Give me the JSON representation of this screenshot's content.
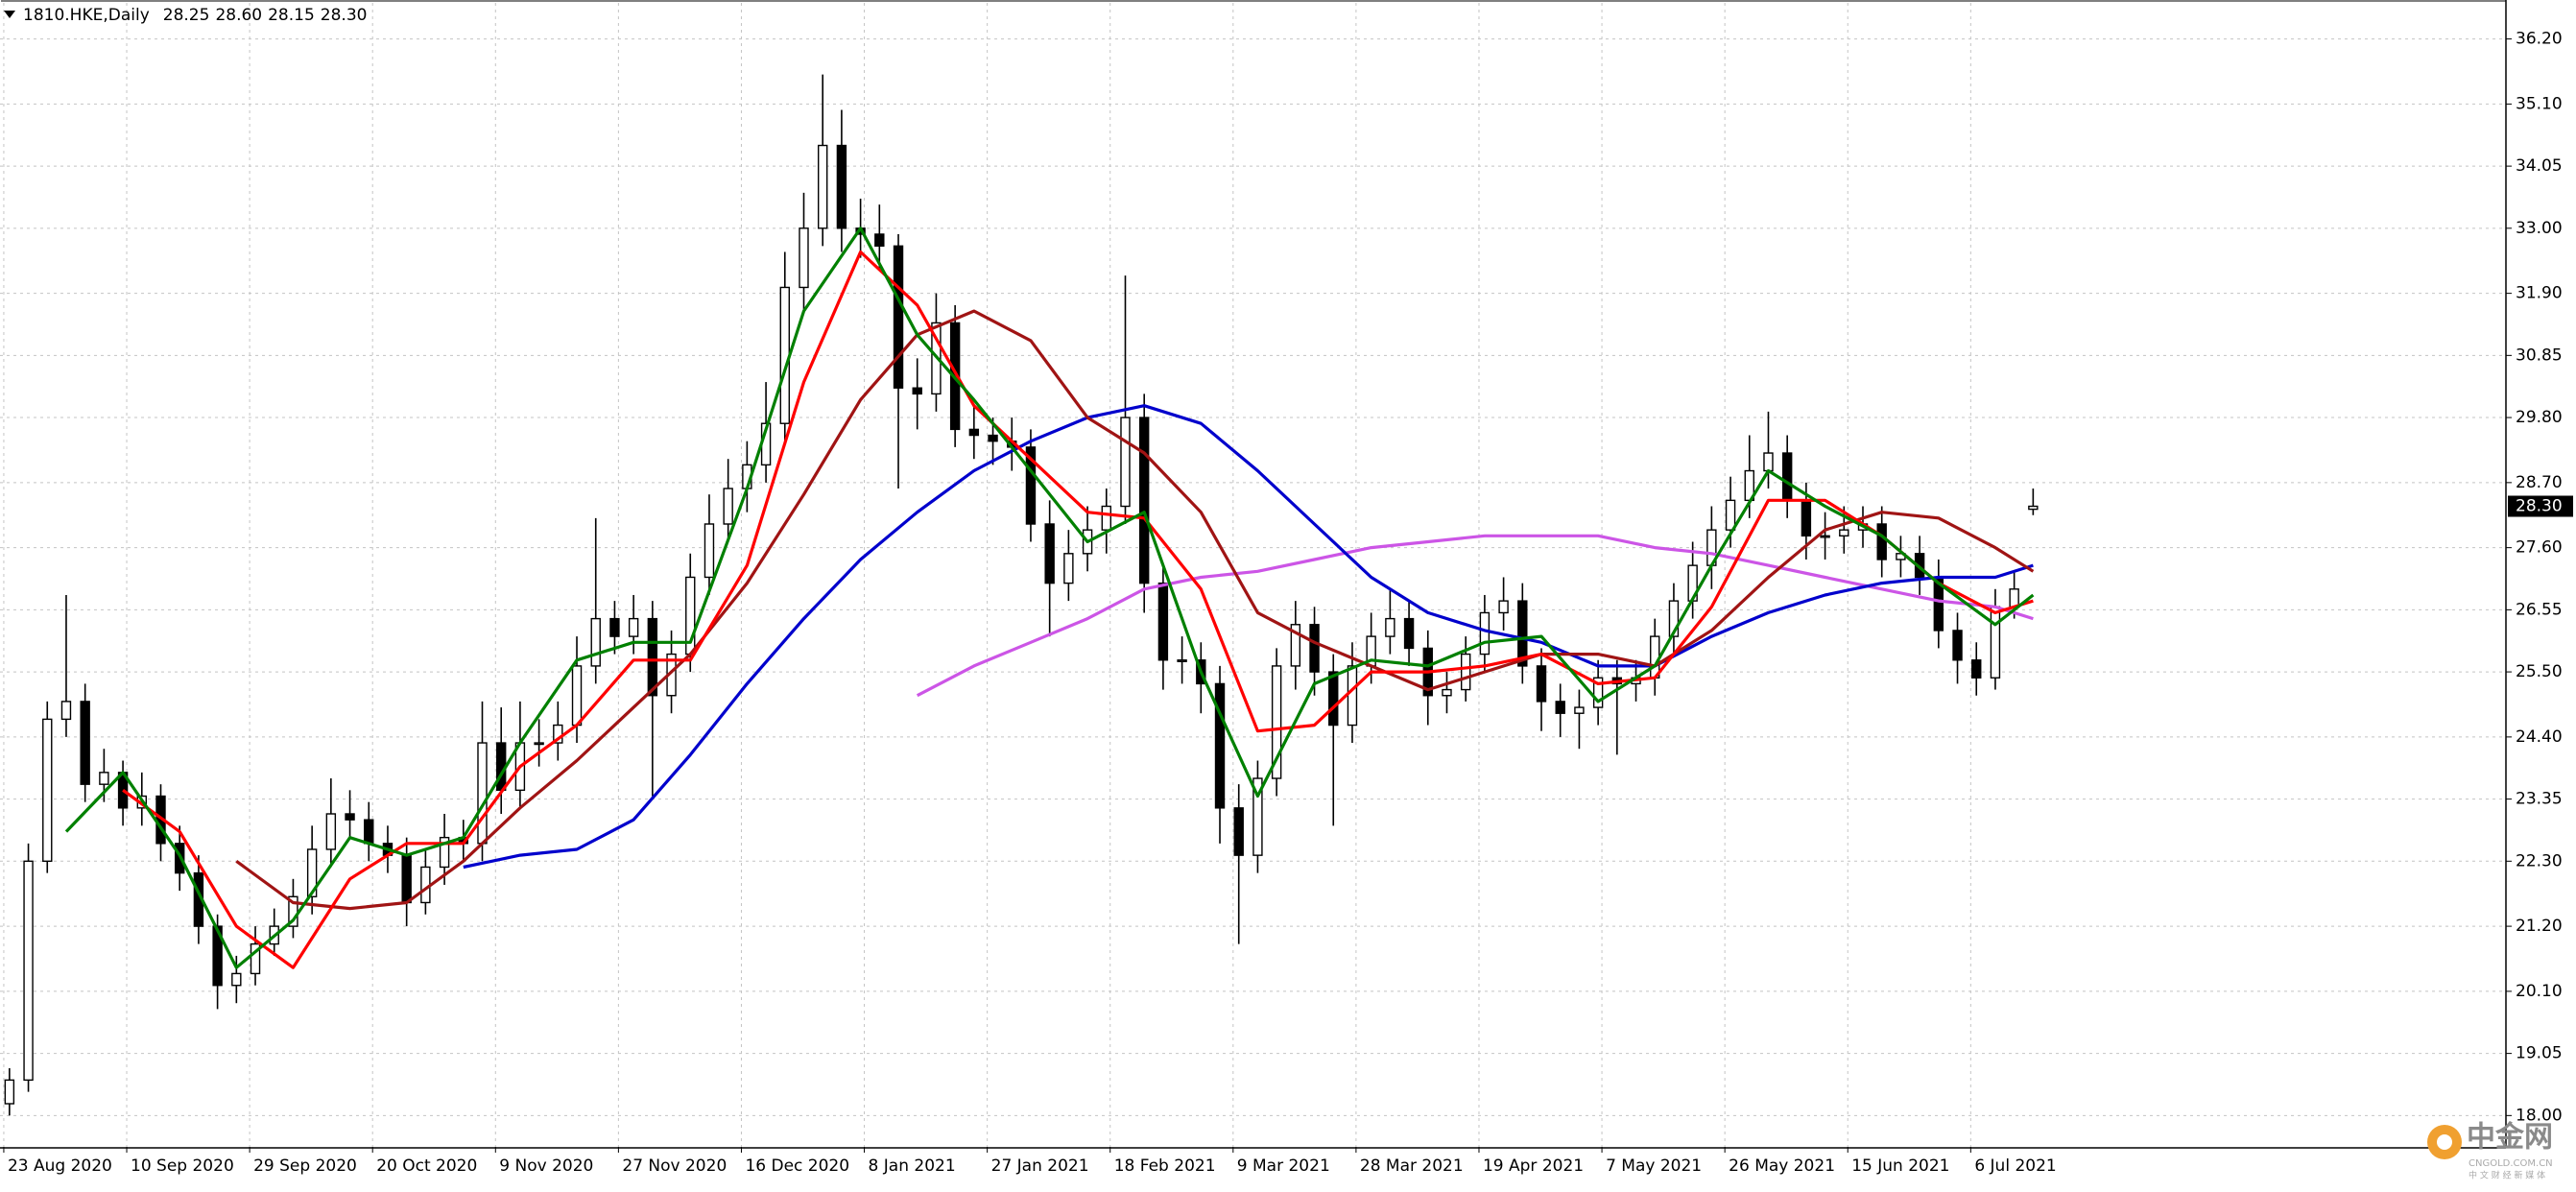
{
  "chart_data": {
    "type": "candlestick",
    "title": "1810.HKE,Daily",
    "header_values": [
      {
        "value": 28.25,
        "label": "28.25"
      },
      {
        "value": 28.6,
        "label": "28.60"
      },
      {
        "value": 28.15,
        "label": "28.15"
      },
      {
        "value": 28.3,
        "label": "28.30"
      }
    ],
    "open": [
      18.2,
      18.6,
      22.3,
      24.7,
      25.0,
      23.6,
      23.8,
      23.2,
      23.4,
      22.6,
      22.1,
      21.2,
      20.2,
      20.4,
      20.9,
      21.2,
      21.7,
      22.5,
      23.1,
      23.0,
      22.6,
      22.4,
      21.6,
      22.2,
      22.7,
      22.6,
      24.3,
      23.5,
      24.3,
      24.3,
      24.6,
      25.6,
      26.4,
      26.1,
      26.4,
      25.1,
      25.8,
      27.1,
      28.0,
      28.6,
      29.0,
      29.7,
      32.0,
      33.0,
      34.4,
      33.0,
      32.9,
      32.7,
      30.3,
      30.2,
      31.4,
      29.6,
      29.5,
      29.4,
      29.3,
      28.0,
      27.0,
      27.5,
      27.9,
      28.3,
      29.8,
      27.0,
      25.7,
      25.7,
      25.3,
      23.2,
      22.4,
      23.7,
      25.6,
      26.3,
      25.5,
      24.6,
      25.6,
      26.1,
      26.4,
      25.9,
      25.1,
      25.2,
      25.8,
      26.5,
      26.7,
      25.6,
      25.0,
      24.8,
      24.9,
      25.4,
      25.3,
      25.4,
      26.1,
      26.7,
      27.3,
      27.9,
      28.4,
      28.9,
      29.2,
      28.4,
      27.8,
      27.8,
      27.9,
      28.0,
      27.4,
      27.5,
      27.1,
      26.2,
      25.7,
      25.4,
      26.6,
      28.25
    ],
    "high": [
      18.8,
      22.6,
      25.0,
      26.8,
      25.3,
      24.2,
      24.0,
      23.8,
      23.6,
      22.9,
      22.4,
      21.4,
      20.7,
      21.2,
      21.5,
      22.0,
      22.9,
      23.7,
      23.5,
      23.3,
      22.9,
      22.7,
      22.5,
      23.1,
      23.0,
      25.0,
      24.9,
      25.0,
      24.7,
      25.0,
      26.1,
      28.1,
      26.7,
      26.8,
      26.7,
      26.2,
      27.5,
      28.5,
      29.1,
      29.4,
      30.4,
      32.6,
      33.6,
      35.6,
      35.0,
      33.5,
      33.4,
      32.9,
      30.8,
      31.9,
      31.7,
      30.0,
      29.8,
      29.8,
      29.6,
      28.4,
      27.9,
      28.3,
      28.6,
      32.2,
      30.2,
      27.3,
      26.1,
      26.0,
      25.6,
      23.6,
      24.0,
      25.9,
      26.7,
      26.6,
      25.8,
      26.0,
      26.5,
      26.9,
      26.7,
      26.2,
      25.5,
      26.1,
      26.8,
      27.1,
      27.0,
      25.9,
      25.3,
      25.2,
      25.7,
      25.7,
      25.7,
      26.4,
      27.0,
      27.7,
      28.3,
      28.8,
      29.5,
      29.9,
      29.5,
      28.7,
      28.2,
      28.3,
      28.3,
      28.3,
      27.8,
      27.8,
      27.4,
      26.5,
      26.0,
      26.9,
      27.2,
      28.6
    ],
    "low": [
      18.0,
      18.4,
      22.1,
      24.4,
      23.3,
      23.3,
      22.9,
      22.9,
      22.3,
      21.8,
      20.9,
      19.8,
      19.9,
      20.2,
      20.7,
      21.0,
      21.4,
      22.2,
      22.7,
      22.3,
      22.1,
      21.2,
      21.4,
      21.9,
      22.3,
      22.3,
      23.1,
      23.2,
      23.9,
      24.0,
      24.3,
      25.3,
      25.8,
      25.8,
      23.4,
      24.8,
      25.5,
      26.8,
      27.7,
      28.2,
      28.7,
      29.4,
      31.6,
      32.7,
      32.6,
      32.5,
      32.3,
      28.6,
      29.6,
      29.9,
      29.3,
      29.1,
      29.0,
      28.9,
      27.7,
      26.1,
      26.7,
      27.2,
      27.5,
      28.0,
      26.5,
      25.2,
      25.3,
      24.8,
      22.6,
      20.9,
      22.1,
      23.4,
      25.2,
      25.1,
      22.9,
      24.3,
      25.3,
      25.8,
      25.6,
      24.6,
      24.8,
      25.0,
      25.5,
      26.2,
      25.3,
      24.5,
      24.4,
      24.2,
      24.6,
      24.1,
      25.0,
      25.1,
      25.8,
      26.4,
      26.9,
      27.6,
      28.1,
      28.6,
      28.1,
      27.4,
      27.4,
      27.5,
      27.6,
      27.1,
      27.1,
      26.8,
      25.9,
      25.3,
      25.1,
      25.2,
      26.4,
      28.15
    ],
    "close": [
      18.6,
      22.3,
      24.7,
      25.0,
      23.6,
      23.8,
      23.2,
      23.4,
      22.6,
      22.1,
      21.2,
      20.2,
      20.4,
      20.9,
      21.2,
      21.7,
      22.5,
      23.1,
      23.0,
      22.6,
      22.4,
      21.6,
      22.2,
      22.7,
      22.6,
      24.3,
      23.5,
      24.3,
      24.3,
      24.6,
      25.6,
      26.4,
      26.1,
      26.4,
      25.1,
      25.8,
      27.1,
      28.0,
      28.6,
      29.0,
      29.7,
      32.0,
      33.0,
      34.4,
      33.0,
      32.9,
      32.7,
      30.3,
      30.2,
      31.4,
      29.6,
      29.5,
      29.4,
      29.3,
      28.0,
      27.0,
      27.5,
      27.9,
      28.3,
      29.8,
      27.0,
      25.7,
      25.7,
      25.3,
      23.2,
      22.4,
      23.7,
      25.6,
      26.3,
      25.5,
      24.6,
      25.6,
      26.1,
      26.4,
      25.9,
      25.1,
      25.2,
      25.8,
      26.5,
      26.7,
      25.6,
      25.0,
      24.8,
      24.9,
      25.4,
      25.3,
      25.4,
      26.1,
      26.7,
      27.3,
      27.9,
      28.4,
      28.9,
      29.2,
      28.4,
      27.8,
      27.8,
      27.9,
      28.0,
      27.4,
      27.5,
      27.1,
      26.2,
      25.7,
      25.4,
      26.6,
      26.9,
      28.3
    ],
    "colors": {
      "up": "#ffffff",
      "down": "#000000",
      "outline": "#000000"
    },
    "xlim": [
      -0.5,
      132
    ],
    "xticks": [
      {
        "value": -0.3,
        "label": "23 Aug 2020"
      },
      {
        "value": 6.2,
        "label": "10 Sep 2020"
      },
      {
        "value": 12.7,
        "label": "29 Sep 2020"
      },
      {
        "value": 19.2,
        "label": "20 Oct 2020"
      },
      {
        "value": 25.7,
        "label": "9 Nov 2020"
      },
      {
        "value": 32.2,
        "label": "27 Nov 2020"
      },
      {
        "value": 38.7,
        "label": "16 Dec 2020"
      },
      {
        "value": 45.2,
        "label": "8 Jan 2021"
      },
      {
        "value": 51.7,
        "label": "27 Jan 2021"
      },
      {
        "value": 58.2,
        "label": "18 Feb 2021"
      },
      {
        "value": 64.7,
        "label": "9 Mar 2021"
      },
      {
        "value": 71.2,
        "label": "28 Mar 2021"
      },
      {
        "value": 77.7,
        "label": "19 Apr 2021"
      },
      {
        "value": 84.2,
        "label": "7 May 2021"
      },
      {
        "value": 90.7,
        "label": "26 May 2021"
      },
      {
        "value": 97.2,
        "label": "15 Jun 2021"
      },
      {
        "value": 103.7,
        "label": "6 Jul 2021"
      }
    ],
    "ylim": [
      17.47,
      36.81
    ],
    "yticks": [
      {
        "value": 18,
        "label": "18.00"
      },
      {
        "value": 19.05,
        "label": "19.05"
      },
      {
        "value": 20.1,
        "label": "20.10"
      },
      {
        "value": 21.2,
        "label": "21.20"
      },
      {
        "value": 22.3,
        "label": "22.30"
      },
      {
        "value": 23.35,
        "label": "23.35"
      },
      {
        "value": 24.4,
        "label": "24.40"
      },
      {
        "value": 25.5,
        "label": "25.50"
      },
      {
        "value": 26.55,
        "label": "26.55"
      },
      {
        "value": 27.6,
        "label": "27.60"
      },
      {
        "value": 28.7,
        "label": "28.70"
      },
      {
        "value": 29.8,
        "label": "29.80"
      },
      {
        "value": 30.85,
        "label": "30.85"
      },
      {
        "value": 31.9,
        "label": "31.90"
      },
      {
        "value": 33,
        "label": "33.00"
      },
      {
        "value": 34.05,
        "label": "34.05"
      },
      {
        "value": 35.1,
        "label": "35.10"
      },
      {
        "value": 36.2,
        "label": "36.20"
      }
    ],
    "grid": true,
    "current_price": {
      "value": 28.3,
      "label": "28.30"
    },
    "ma_x": [
      0,
      3,
      6,
      9,
      12,
      15,
      18,
      21,
      24,
      27,
      30,
      33,
      36,
      39,
      42,
      45,
      48,
      51,
      54,
      57,
      60,
      63,
      66,
      69,
      72,
      75,
      78,
      81,
      84,
      87,
      90,
      93,
      96,
      99,
      102,
      105,
      107
    ],
    "series": [
      {
        "color": "#cc55e6",
        "values": [
          null,
          null,
          null,
          null,
          null,
          null,
          null,
          null,
          null,
          null,
          null,
          null,
          null,
          null,
          null,
          null,
          25.1,
          25.6,
          26.0,
          26.4,
          26.9,
          27.1,
          27.2,
          27.4,
          27.6,
          27.7,
          27.8,
          27.8,
          27.8,
          27.6,
          27.5,
          27.3,
          27.1,
          26.9,
          26.7,
          26.6,
          26.4
        ]
      },
      {
        "color": "#0000cc",
        "values": [
          null,
          null,
          null,
          null,
          null,
          null,
          null,
          null,
          22.2,
          22.4,
          22.5,
          23.0,
          24.1,
          25.3,
          26.4,
          27.4,
          28.2,
          28.9,
          29.4,
          29.8,
          30.0,
          29.7,
          28.9,
          28.0,
          27.1,
          26.5,
          26.2,
          26.0,
          25.6,
          25.6,
          26.1,
          26.5,
          26.8,
          27.0,
          27.1,
          27.1,
          27.3
        ]
      },
      {
        "color": "#a01414",
        "values": [
          null,
          null,
          null,
          null,
          22.3,
          21.6,
          21.5,
          21.6,
          22.3,
          23.2,
          24.0,
          24.9,
          25.8,
          27.0,
          28.5,
          30.1,
          31.2,
          31.6,
          31.1,
          29.8,
          29.2,
          28.2,
          26.5,
          26.0,
          25.6,
          25.2,
          25.5,
          25.8,
          25.8,
          25.6,
          26.2,
          27.1,
          27.9,
          28.2,
          28.1,
          27.6,
          27.2
        ]
      },
      {
        "color": "#ff0000",
        "values": [
          null,
          null,
          23.5,
          22.8,
          21.2,
          20.5,
          22.0,
          22.6,
          22.6,
          23.9,
          24.6,
          25.7,
          25.7,
          27.3,
          30.4,
          32.6,
          31.7,
          30.0,
          29.1,
          28.2,
          28.1,
          26.9,
          24.5,
          24.6,
          25.5,
          25.5,
          25.6,
          25.8,
          25.3,
          25.4,
          26.6,
          28.4,
          28.4,
          27.8,
          27.0,
          26.5,
          26.7
        ]
      },
      {
        "color": "#008000",
        "values": [
          null,
          22.8,
          23.8,
          22.4,
          20.5,
          21.3,
          22.7,
          22.4,
          22.7,
          24.3,
          25.7,
          26.0,
          26.0,
          28.6,
          31.6,
          33.0,
          31.2,
          30.1,
          28.9,
          27.7,
          28.2,
          25.5,
          23.4,
          25.3,
          25.7,
          25.6,
          26.0,
          26.1,
          25.0,
          25.6,
          27.3,
          28.9,
          28.3,
          27.8,
          27.0,
          26.3,
          26.8
        ]
      }
    ]
  },
  "watermark": {
    "name": "中金网",
    "site": "CNGOLD.COM.CN",
    "tagline": "中 文 财 经 新 媒 体"
  }
}
